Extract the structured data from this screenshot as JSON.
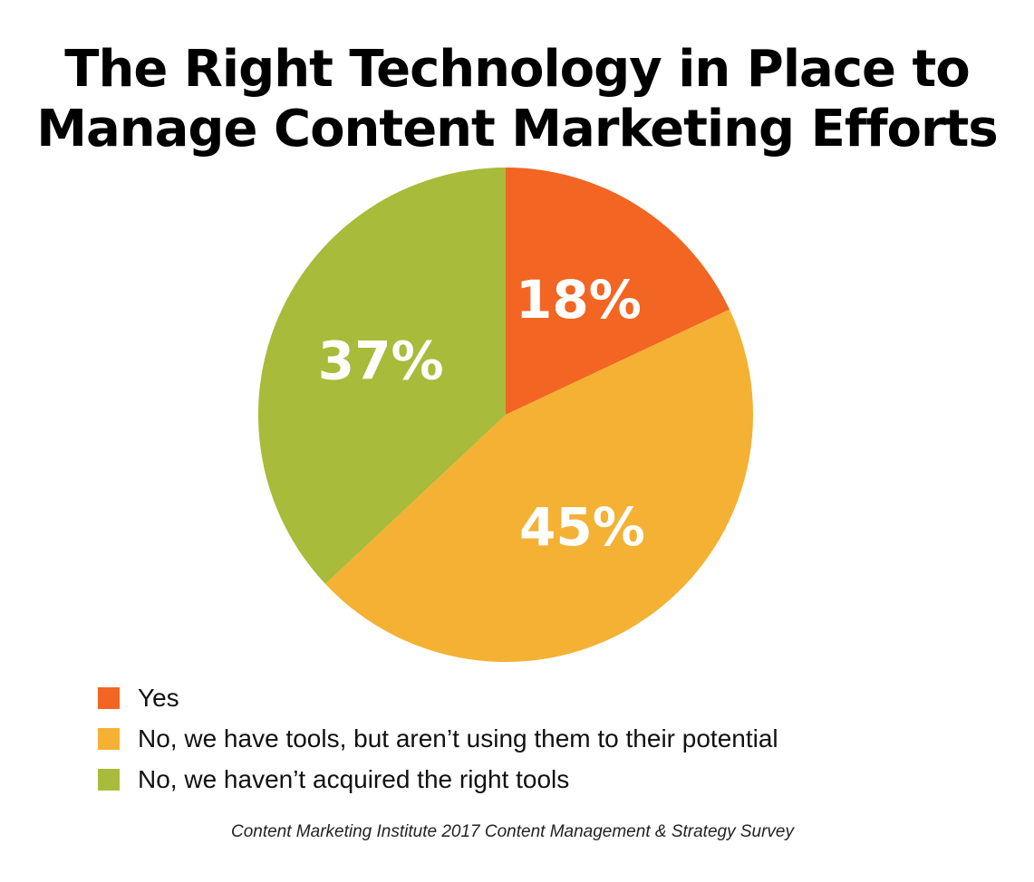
{
  "title": {
    "line1": "The Right Technology in Place to",
    "line2": "Manage Content Marketing Efforts"
  },
  "chart_data": {
    "type": "pie",
    "title": "The Right Technology in Place to Manage Content Marketing Efforts",
    "slices": [
      {
        "name": "Yes",
        "value": 18,
        "label": "18%",
        "color": "#f26522"
      },
      {
        "name": "No, we have tools, but aren’t using them to their potential",
        "value": 45,
        "label": "45%",
        "color": "#f4b133"
      },
      {
        "name": "No, we haven’t acquired the right tools",
        "value": 37,
        "label": "37%",
        "color": "#a8bb3a"
      }
    ],
    "start": "12 o'clock",
    "direction": "clockwise",
    "legend_position": "bottom-left"
  },
  "legend": {
    "items": [
      {
        "label": "Yes",
        "color": "#f26522"
      },
      {
        "label": "No, we have tools, but aren’t using them to their potential",
        "color": "#f4b133"
      },
      {
        "label": "No, we haven’t acquired the right tools",
        "color": "#a8bb3a"
      }
    ]
  },
  "source": "Content Marketing Institute 2017 Content Management & Strategy Survey"
}
